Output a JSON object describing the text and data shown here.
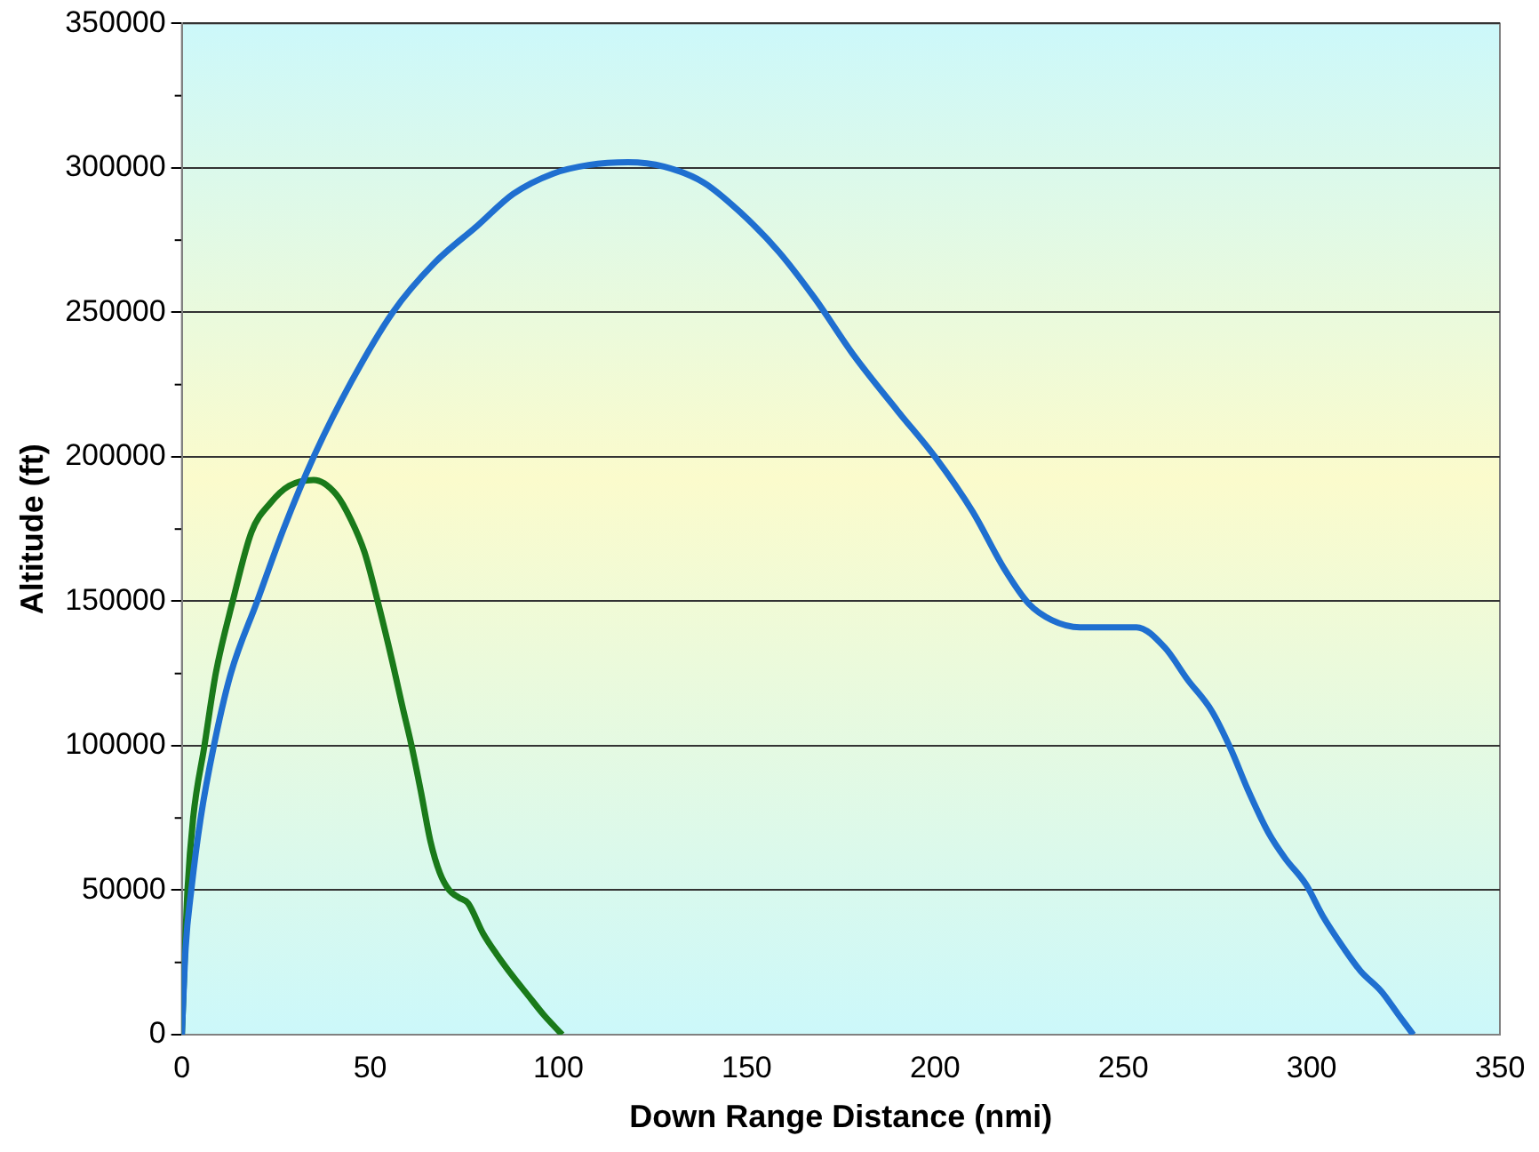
{
  "chart_data": {
    "type": "line",
    "xlabel": "Down Range Distance (nmi)",
    "ylabel": "Altitude (ft)",
    "xlim": [
      0,
      350
    ],
    "xticks": [
      0,
      50,
      100,
      150,
      200,
      250,
      300,
      350
    ],
    "ylim": [
      0,
      350000
    ],
    "yticks": [
      0,
      50000,
      100000,
      150000,
      200000,
      250000,
      300000,
      350000
    ],
    "grid": "y",
    "legend": false,
    "marker": "none",
    "line_style": "solid",
    "series": [
      {
        "color": "#1f6fd0",
        "x": [
          0,
          1,
          2.5,
          5,
          8.5,
          13,
          20,
          27,
          35,
          45,
          56,
          67,
          78.5,
          88,
          98.5,
          108,
          118.5,
          128,
          138.5,
          148,
          158.5,
          168,
          178.5,
          190,
          200,
          210,
          218.5,
          225,
          231,
          238.5,
          246,
          253.5,
          261,
          267,
          273.5,
          278.5,
          283,
          288.5,
          293,
          298.5,
          303,
          308.5,
          313,
          318.5,
          323,
          327
        ],
        "values": [
          0,
          30000,
          50000,
          75000,
          100000,
          125000,
          150000,
          175000,
          200000,
          226000,
          250000,
          267000,
          280000,
          291000,
          298000,
          301000,
          302000,
          300500,
          295000,
          285000,
          271000,
          255000,
          235000,
          216000,
          200000,
          181000,
          161000,
          149000,
          143500,
          141000,
          141000,
          141000,
          134000,
          123000,
          112000,
          99000,
          85000,
          70000,
          61000,
          52000,
          41000,
          30000,
          22000,
          15000,
          7000,
          0
        ]
      },
      {
        "color": "#1a7a1a",
        "x": [
          0,
          1.5,
          3,
          6,
          9,
          13.5,
          18.5,
          23.5,
          28.5,
          35,
          41,
          45,
          48.5,
          52,
          56,
          58.5,
          61,
          63.5,
          66,
          68.5,
          71,
          73.5,
          76,
          80,
          83.5,
          88,
          92,
          96,
          101
        ],
        "values": [
          0,
          50000,
          75000,
          100000,
          125000,
          150000,
          174000,
          184000,
          190000,
          192000,
          187000,
          178000,
          167000,
          150000,
          128500,
          114000,
          100000,
          84000,
          67000,
          56000,
          50000,
          47500,
          45500,
          35000,
          28000,
          20000,
          13500,
          7000,
          0
        ]
      }
    ]
  }
}
